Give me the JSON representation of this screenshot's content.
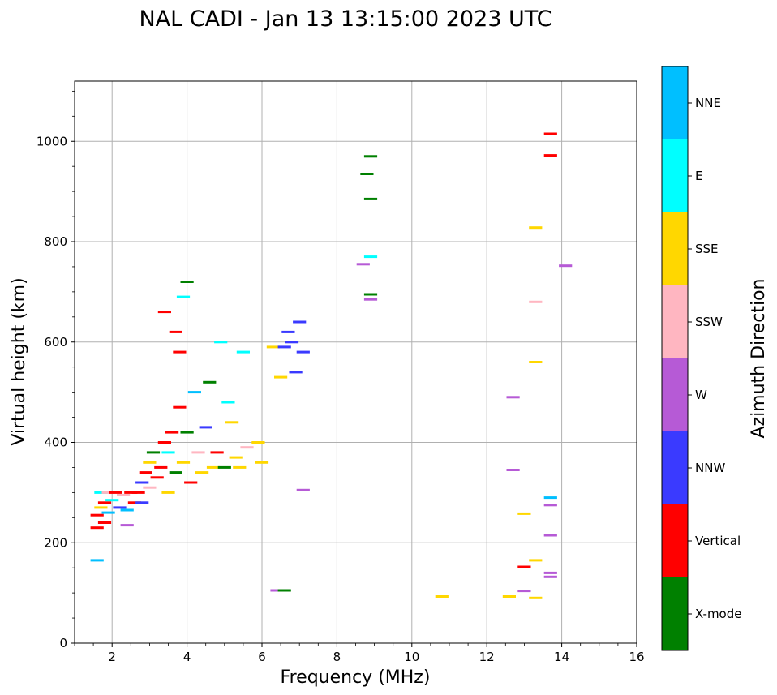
{
  "chart_data": {
    "type": "scatter",
    "title": "NAL CADI - Jan 13 13:15:00 2023 UTC",
    "xlabel": "Frequency (MHz)",
    "ylabel": "Virtual height (km)",
    "xlim": [
      1,
      16
    ],
    "ylim": [
      0,
      1120
    ],
    "xticks": [
      "2",
      "4",
      "6",
      "8",
      "10",
      "12",
      "14",
      "16"
    ],
    "yticks": [
      "0",
      "200",
      "400",
      "600",
      "800",
      "1000"
    ],
    "grid": true,
    "colorbar": {
      "label": "Azimuth Direction",
      "categories": [
        {
          "name": "X-mode",
          "color": "#008000"
        },
        {
          "name": "Vertical",
          "color": "#ff0000"
        },
        {
          "name": "NNW",
          "color": "#3a3aff"
        },
        {
          "name": "W",
          "color": "#b65ad6"
        },
        {
          "name": "SSW",
          "color": "#ffb6c1"
        },
        {
          "name": "SSE",
          "color": "#ffd700"
        },
        {
          "name": "E",
          "color": "#00ffff"
        },
        {
          "name": "NNE",
          "color": "#00bfff"
        }
      ]
    },
    "points": [
      [
        1.6,
        165,
        "NNE"
      ],
      [
        1.6,
        230,
        "Vertical"
      ],
      [
        1.6,
        255,
        "Vertical"
      ],
      [
        1.7,
        270,
        "SSE"
      ],
      [
        1.7,
        300,
        "E"
      ],
      [
        1.8,
        280,
        "Vertical"
      ],
      [
        1.8,
        240,
        "Vertical"
      ],
      [
        1.9,
        260,
        "NNE"
      ],
      [
        1.9,
        300,
        "SSW"
      ],
      [
        2.0,
        285,
        "E"
      ],
      [
        2.1,
        300,
        "Vertical"
      ],
      [
        2.2,
        270,
        "NNW"
      ],
      [
        2.3,
        295,
        "SSW"
      ],
      [
        2.4,
        265,
        "NNE"
      ],
      [
        2.4,
        235,
        "W"
      ],
      [
        2.5,
        300,
        "Vertical"
      ],
      [
        2.6,
        280,
        "Vertical"
      ],
      [
        2.7,
        300,
        "Vertical"
      ],
      [
        2.8,
        320,
        "NNW"
      ],
      [
        2.8,
        280,
        "NNW"
      ],
      [
        2.9,
        340,
        "Vertical"
      ],
      [
        3.0,
        310,
        "SSW"
      ],
      [
        3.0,
        360,
        "SSE"
      ],
      [
        3.1,
        380,
        "X-mode"
      ],
      [
        3.2,
        330,
        "Vertical"
      ],
      [
        3.3,
        350,
        "Vertical"
      ],
      [
        3.4,
        400,
        "Vertical"
      ],
      [
        3.4,
        660,
        "Vertical"
      ],
      [
        3.5,
        380,
        "E"
      ],
      [
        3.5,
        300,
        "SSE"
      ],
      [
        3.6,
        420,
        "Vertical"
      ],
      [
        3.7,
        340,
        "X-mode"
      ],
      [
        3.7,
        620,
        "Vertical"
      ],
      [
        3.8,
        470,
        "Vertical"
      ],
      [
        3.8,
        580,
        "Vertical"
      ],
      [
        3.9,
        690,
        "E"
      ],
      [
        3.9,
        360,
        "SSE"
      ],
      [
        4.0,
        720,
        "X-mode"
      ],
      [
        4.0,
        420,
        "X-mode"
      ],
      [
        4.1,
        320,
        "Vertical"
      ],
      [
        4.2,
        500,
        "NNE"
      ],
      [
        4.3,
        380,
        "SSW"
      ],
      [
        4.4,
        340,
        "SSE"
      ],
      [
        4.5,
        430,
        "NNW"
      ],
      [
        4.6,
        520,
        "X-mode"
      ],
      [
        4.7,
        350,
        "SSE"
      ],
      [
        4.8,
        380,
        "Vertical"
      ],
      [
        4.9,
        600,
        "E"
      ],
      [
        5.0,
        350,
        "X-mode"
      ],
      [
        5.1,
        480,
        "E"
      ],
      [
        5.2,
        440,
        "SSE"
      ],
      [
        5.3,
        370,
        "SSE"
      ],
      [
        5.4,
        350,
        "SSE"
      ],
      [
        5.5,
        580,
        "E"
      ],
      [
        5.6,
        390,
        "SSW"
      ],
      [
        5.9,
        400,
        "SSE"
      ],
      [
        6.0,
        360,
        "SSE"
      ],
      [
        6.3,
        590,
        "SSE"
      ],
      [
        6.4,
        105,
        "W"
      ],
      [
        6.5,
        530,
        "SSE"
      ],
      [
        6.6,
        105,
        "X-mode"
      ],
      [
        6.6,
        590,
        "NNW"
      ],
      [
        6.7,
        620,
        "NNW"
      ],
      [
        6.8,
        600,
        "NNW"
      ],
      [
        6.9,
        540,
        "NNW"
      ],
      [
        7.0,
        640,
        "NNW"
      ],
      [
        7.1,
        580,
        "NNW"
      ],
      [
        7.1,
        305,
        "W"
      ],
      [
        8.8,
        935,
        "X-mode"
      ],
      [
        8.9,
        970,
        "X-mode"
      ],
      [
        8.9,
        885,
        "X-mode"
      ],
      [
        8.9,
        770,
        "E"
      ],
      [
        8.9,
        695,
        "X-mode"
      ],
      [
        8.9,
        685,
        "W"
      ],
      [
        8.7,
        755,
        "W"
      ],
      [
        10.8,
        93,
        "SSE"
      ],
      [
        12.6,
        93,
        "SSE"
      ],
      [
        12.7,
        490,
        "W"
      ],
      [
        12.7,
        345,
        "W"
      ],
      [
        13.0,
        258,
        "SSE"
      ],
      [
        13.0,
        152,
        "Vertical"
      ],
      [
        13.0,
        104,
        "W"
      ],
      [
        13.3,
        828,
        "SSE"
      ],
      [
        13.3,
        680,
        "SSW"
      ],
      [
        13.3,
        560,
        "SSE"
      ],
      [
        13.3,
        165,
        "SSE"
      ],
      [
        13.3,
        90,
        "SSE"
      ],
      [
        13.7,
        1015,
        "Vertical"
      ],
      [
        13.7,
        972,
        "Vertical"
      ],
      [
        13.7,
        290,
        "NNE"
      ],
      [
        13.7,
        275,
        "W"
      ],
      [
        13.7,
        215,
        "W"
      ],
      [
        13.7,
        140,
        "W"
      ],
      [
        13.7,
        132,
        "W"
      ],
      [
        14.1,
        752,
        "W"
      ]
    ]
  }
}
